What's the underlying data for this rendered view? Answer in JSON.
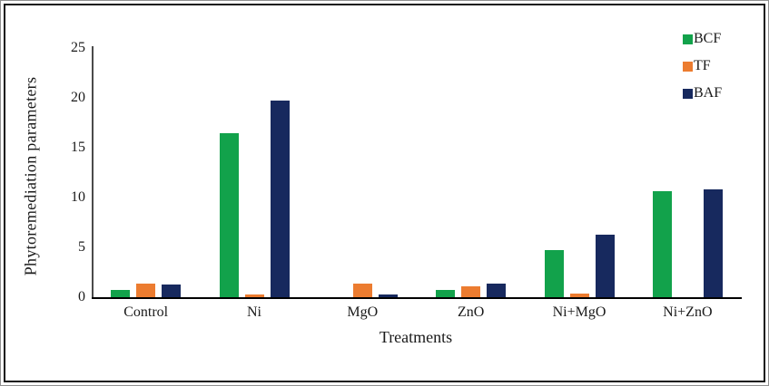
{
  "figure": {
    "y_axis_label": "Phytoremediation parameters",
    "x_axis_label": "Treatments"
  },
  "chart_data": {
    "type": "bar",
    "title": "",
    "categories": [
      "Control",
      "Ni",
      "MgO",
      "ZnO",
      "Ni+MgO",
      "Ni+ZnO"
    ],
    "series": [
      {
        "name": "BCF",
        "color": "#12A24B",
        "values": [
          0.7,
          16.5,
          0,
          0.7,
          4.7,
          10.6
        ]
      },
      {
        "name": "TF",
        "color": "#EC7C30",
        "values": [
          1.4,
          0.3,
          1.4,
          1.1,
          0.4,
          0
        ]
      },
      {
        "name": "BAF",
        "color": "#17295E",
        "values": [
          1.3,
          19.7,
          0.3,
          1.4,
          6.3,
          10.8
        ]
      }
    ],
    "xlabel": "Treatments",
    "ylabel": "Phytoremediation parameters",
    "ylim": [
      0,
      25
    ],
    "yticks": [
      0,
      5,
      10,
      15,
      20,
      25
    ],
    "grid": false,
    "legend_position": "top-right"
  }
}
